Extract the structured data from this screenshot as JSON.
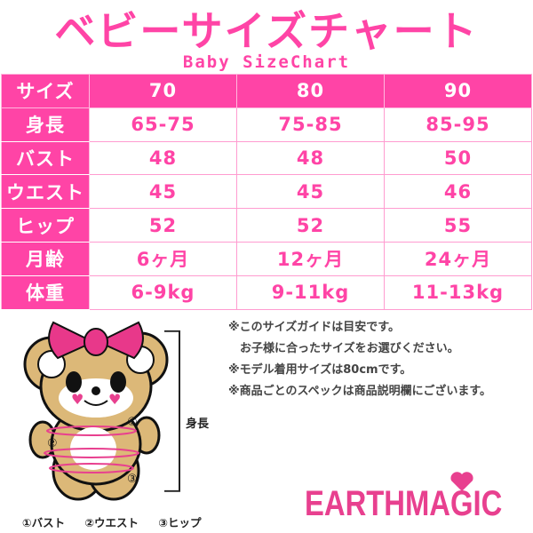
{
  "title": "ベビーサイズチャート",
  "subtitle": "Baby SizeChart",
  "table": {
    "header": [
      "サイズ",
      "70",
      "80",
      "90"
    ],
    "rows": [
      [
        "身長",
        "65-75",
        "75-85",
        "85-95"
      ],
      [
        "バスト",
        "48",
        "48",
        "50"
      ],
      [
        "ウエスト",
        "45",
        "45",
        "46"
      ],
      [
        "ヒップ",
        "52",
        "52",
        "55"
      ],
      [
        "月齢",
        "6ヶ月",
        "12ヶ月",
        "24ヶ月"
      ],
      [
        "体重",
        "6-9kg",
        "9-11kg",
        "11-13kg"
      ]
    ]
  },
  "notes": [
    "※このサイズガイドは目安です。",
    "　お子様に合ったサイズをお選びください。",
    "※モデル着用サイズは80cmです。",
    "※商品ごとのスペックは商品説明欄にございます。"
  ],
  "diagram": {
    "height_label": "身長",
    "markers": [
      "①",
      "②",
      "③"
    ],
    "legend": [
      "①バスト",
      "②ウエスト",
      "③ヒップ"
    ]
  },
  "brand": "EARTHMAGIC",
  "colors": {
    "accent": "#ff44a6",
    "logo": "#e8408f",
    "bear": "#dcb878"
  }
}
